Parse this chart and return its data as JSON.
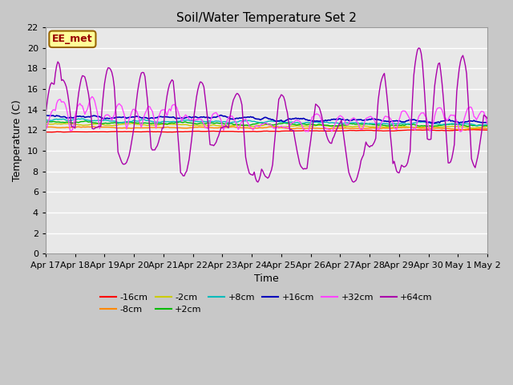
{
  "title": "Soil/Water Temperature Set 2",
  "xlabel": "Time",
  "ylabel": "Temperature (C)",
  "ylim": [
    0,
    22
  ],
  "yticks": [
    0,
    2,
    4,
    6,
    8,
    10,
    12,
    14,
    16,
    18,
    20,
    22
  ],
  "fig_bg": "#c8c8c8",
  "plot_bg": "#e8e8e8",
  "annotation_text": "EE_met",
  "annotation_box_color": "#ffff99",
  "annotation_text_color": "#990000",
  "series": {
    "-16cm": {
      "color": "#ff0000",
      "lw": 1.0
    },
    "-8cm": {
      "color": "#ff8800",
      "lw": 1.0
    },
    "-2cm": {
      "color": "#cccc00",
      "lw": 1.0
    },
    "+2cm": {
      "color": "#00bb00",
      "lw": 1.0
    },
    "+8cm": {
      "color": "#00bbbb",
      "lw": 1.0
    },
    "+16cm": {
      "color": "#0000bb",
      "lw": 1.2
    },
    "+32cm": {
      "color": "#ff44ff",
      "lw": 1.0
    },
    "+64cm": {
      "color": "#aa00aa",
      "lw": 1.0
    }
  },
  "xticklabels": [
    "Apr 17",
    "Apr 18",
    "Apr 19",
    "Apr 20",
    "Apr 21",
    "Apr 22",
    "Apr 23",
    "Apr 24",
    "Apr 25",
    "Apr 26",
    "Apr 27",
    "Apr 28",
    "Apr 29",
    "Apr 30",
    "May 1",
    "May 2"
  ],
  "num_points": 361,
  "figsize": [
    6.4,
    4.8
  ],
  "dpi": 100
}
